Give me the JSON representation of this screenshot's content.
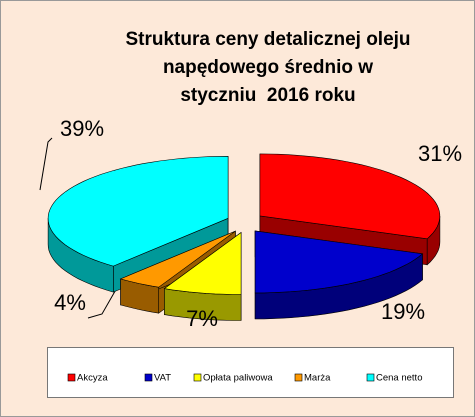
{
  "chart_data": {
    "type": "pie3d",
    "title": [
      "Struktura ceny detalicznej oleju",
      "napędowego średnio w",
      "styczniu  2016 roku"
    ],
    "categories": [
      "Akcyza",
      "VAT",
      "Opłata paliwowa",
      "Marża",
      "Cena netto"
    ],
    "values": [
      31,
      19,
      7,
      4,
      39
    ],
    "value_labels": [
      "31%",
      "19%",
      "7%",
      "4%",
      "39%"
    ],
    "colors": [
      "#ff0000",
      "#0000cc",
      "#ffff00",
      "#ff9900",
      "#00ffff"
    ],
    "legend": "bottom"
  }
}
